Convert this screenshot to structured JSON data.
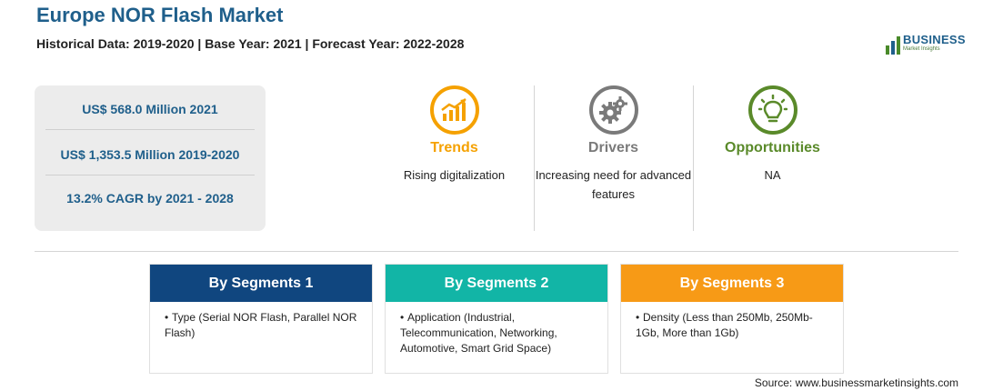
{
  "header": {
    "title": "Europe NOR Flash Market",
    "subtitle": "Historical Data: 2019-2020 | Base Year: 2021 | Forecast Year: 2022-2028"
  },
  "logo": {
    "name": "BUSINESS",
    "tagline": "Market Insights"
  },
  "stats": [
    "US$ 568.0 Million 2021",
    "US$ 1,353.5 Million 2019-2020",
    "13.2% CAGR by 2021 - 2028"
  ],
  "features": [
    {
      "title": "Trends",
      "description": "Rising digitalization",
      "color": "#f5a100",
      "icon": "chart-growth-icon"
    },
    {
      "title": "Drivers",
      "description": "Increasing need for advanced features",
      "color": "#7a7a7a",
      "icon": "gears-icon"
    },
    {
      "title": "Opportunities",
      "description": "NA",
      "color": "#5a8a2a",
      "icon": "lightbulb-icon"
    }
  ],
  "segments": [
    {
      "title": "By Segments 1",
      "color": "#10467f",
      "items": [
        "Type (Serial NOR Flash, Parallel NOR Flash)"
      ]
    },
    {
      "title": "By Segments 2",
      "color": "#12b5a6",
      "items": [
        "Application (Industrial, Telecommunication, Networking, Automotive, Smart Grid Space)"
      ]
    },
    {
      "title": "By Segments 3",
      "color": "#f79a16",
      "items": [
        "Density (Less than 250Mb, 250Mb-1Gb, More than 1Gb)"
      ]
    }
  ],
  "source": "Source: www.businessmarketinsights.com",
  "bullet": "•"
}
